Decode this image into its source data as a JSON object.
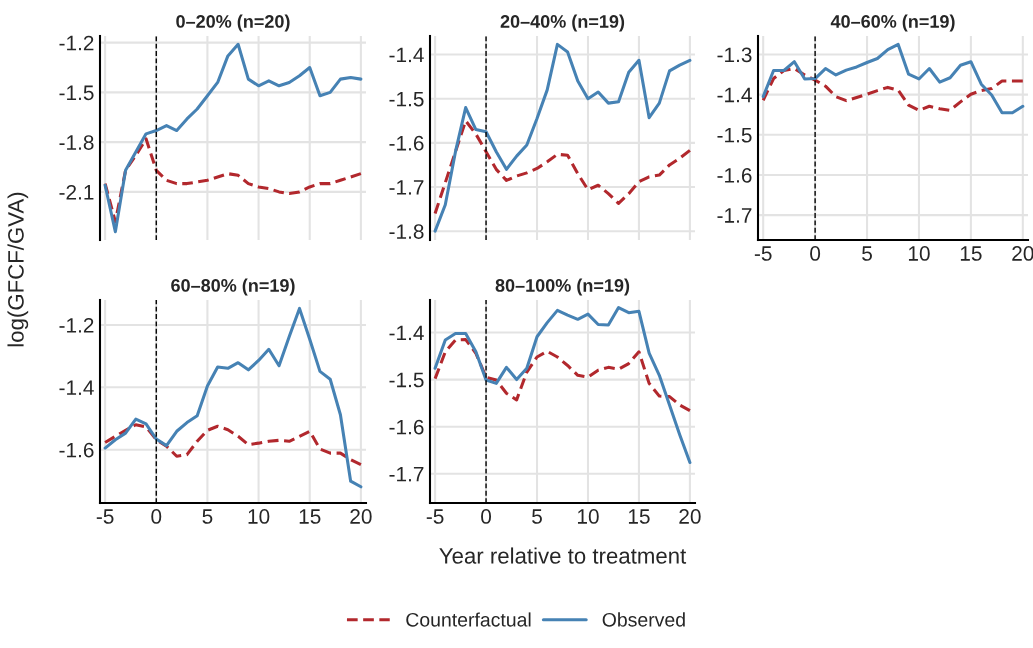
{
  "chart_data": [
    {
      "type": "line",
      "title": "0–20% (n=20)",
      "x": [
        -5,
        -4,
        -3,
        -2,
        -1,
        0,
        1,
        2,
        3,
        4,
        5,
        6,
        7,
        8,
        9,
        10,
        11,
        12,
        13,
        14,
        15,
        16,
        17,
        18,
        19,
        20
      ],
      "xlim": [
        -5.5,
        20.5
      ],
      "xticks": [
        -5,
        0,
        5,
        10,
        15,
        20
      ],
      "ylim": [
        -2.39,
        -1.16
      ],
      "yticks": [
        -2.1,
        -1.8,
        -1.5,
        -1.2
      ],
      "tick_labels": "y",
      "grid": true,
      "legend": "bottom",
      "ref_lines": [
        {
          "axis": "x",
          "value": 0,
          "color": "#000000",
          "line_style": "dashed"
        }
      ],
      "series": [
        {
          "name": "Counterfactual",
          "color": "#b2282d",
          "line_style": "dashed",
          "values": [
            -2.05,
            -2.28,
            -1.97,
            -1.88,
            -1.78,
            -1.97,
            -2.03,
            -2.05,
            -2.05,
            -2.04,
            -2.03,
            -2.01,
            -1.99,
            -2.0,
            -2.05,
            -2.07,
            -2.08,
            -2.1,
            -2.11,
            -2.1,
            -2.07,
            -2.05,
            -2.05,
            -2.03,
            -2.01,
            -1.99
          ]
        },
        {
          "name": "Observed",
          "color": "#4682b4",
          "line_style": "solid",
          "values": [
            -2.06,
            -2.34,
            -1.97,
            -1.86,
            -1.75,
            -1.73,
            -1.7,
            -1.73,
            -1.66,
            -1.6,
            -1.52,
            -1.44,
            -1.28,
            -1.21,
            -1.42,
            -1.46,
            -1.43,
            -1.46,
            -1.44,
            -1.4,
            -1.35,
            -1.52,
            -1.5,
            -1.42,
            -1.41,
            -1.42
          ]
        }
      ]
    },
    {
      "type": "line",
      "title": "20–40% (n=19)",
      "x": [
        -5,
        -4,
        -3,
        -2,
        -1,
        0,
        1,
        2,
        3,
        4,
        5,
        6,
        7,
        8,
        9,
        10,
        11,
        12,
        13,
        14,
        15,
        16,
        17,
        18,
        19,
        20
      ],
      "xlim": [
        -5.5,
        20.5
      ],
      "xticks": [
        -5,
        0,
        5,
        10,
        15,
        20
      ],
      "ylim": [
        -1.82,
        -1.358
      ],
      "yticks": [
        -1.8,
        -1.7,
        -1.6,
        -1.5,
        -1.4
      ],
      "tick_labels": "y",
      "grid": true,
      "legend": "bottom",
      "ref_lines": [
        {
          "axis": "x",
          "value": 0,
          "color": "#000000",
          "line_style": "dashed"
        }
      ],
      "series": [
        {
          "name": "Counterfactual",
          "color": "#b2282d",
          "line_style": "dashed",
          "values": [
            -1.76,
            -1.69,
            -1.62,
            -1.55,
            -1.58,
            -1.62,
            -1.66,
            -1.685,
            -1.675,
            -1.668,
            -1.658,
            -1.643,
            -1.626,
            -1.628,
            -1.67,
            -1.706,
            -1.696,
            -1.715,
            -1.737,
            -1.715,
            -1.688,
            -1.677,
            -1.673,
            -1.65,
            -1.635,
            -1.617
          ]
        },
        {
          "name": "Observed",
          "color": "#4682b4",
          "line_style": "solid",
          "values": [
            -1.8,
            -1.74,
            -1.62,
            -1.52,
            -1.57,
            -1.575,
            -1.62,
            -1.66,
            -1.63,
            -1.605,
            -1.545,
            -1.48,
            -1.377,
            -1.394,
            -1.46,
            -1.5,
            -1.485,
            -1.51,
            -1.507,
            -1.44,
            -1.413,
            -1.543,
            -1.51,
            -1.437,
            -1.424,
            -1.413
          ]
        }
      ]
    },
    {
      "type": "line",
      "title": "40–60% (n=19)",
      "x": [
        -5,
        -4,
        -3,
        -2,
        -1,
        0,
        1,
        2,
        3,
        4,
        5,
        6,
        7,
        8,
        9,
        10,
        11,
        12,
        13,
        14,
        15,
        16,
        17,
        18,
        19,
        20
      ],
      "xlim": [
        -5.5,
        20.5
      ],
      "xticks": [
        -5,
        0,
        5,
        10,
        15,
        20
      ],
      "ylim": [
        -1.762,
        -1.254
      ],
      "yticks": [
        -1.7,
        -1.6,
        -1.5,
        -1.4,
        -1.3
      ],
      "grid": true,
      "legend": "bottom",
      "ref_lines": [
        {
          "axis": "x",
          "value": 0,
          "color": "#000000",
          "line_style": "dashed"
        }
      ],
      "series": [
        {
          "name": "Counterfactual",
          "color": "#b2282d",
          "line_style": "dashed",
          "values": [
            -1.414,
            -1.36,
            -1.34,
            -1.335,
            -1.351,
            -1.364,
            -1.379,
            -1.405,
            -1.415,
            -1.407,
            -1.399,
            -1.39,
            -1.382,
            -1.389,
            -1.426,
            -1.439,
            -1.429,
            -1.435,
            -1.439,
            -1.418,
            -1.399,
            -1.39,
            -1.385,
            -1.366,
            -1.366,
            -1.366
          ]
        },
        {
          "name": "Observed",
          "color": "#4682b4",
          "line_style": "solid",
          "values": [
            -1.405,
            -1.34,
            -1.34,
            -1.318,
            -1.361,
            -1.36,
            -1.335,
            -1.351,
            -1.339,
            -1.331,
            -1.32,
            -1.31,
            -1.288,
            -1.275,
            -1.349,
            -1.361,
            -1.335,
            -1.369,
            -1.358,
            -1.327,
            -1.318,
            -1.374,
            -1.401,
            -1.445,
            -1.445,
            -1.429
          ]
        }
      ]
    },
    {
      "type": "line",
      "title": "60–80% (n=19)",
      "ylabel": "log(GFCF/GVA)",
      "x": [
        -5,
        -4,
        -3,
        -2,
        -1,
        0,
        1,
        2,
        3,
        4,
        5,
        6,
        7,
        8,
        9,
        10,
        11,
        12,
        13,
        14,
        15,
        16,
        17,
        18,
        19,
        20
      ],
      "xlim": [
        -5.5,
        20.5
      ],
      "xticks": [
        -5,
        0,
        5,
        10,
        15,
        20
      ],
      "ylim": [
        -1.771,
        -1.12
      ],
      "yticks": [
        -1.6,
        -1.4,
        -1.2
      ],
      "grid": true,
      "legend": "bottom",
      "ref_lines": [
        {
          "axis": "x",
          "value": 0,
          "color": "#000000",
          "line_style": "dashed"
        }
      ],
      "series": [
        {
          "name": "Counterfactual",
          "color": "#b2282d",
          "line_style": "dashed",
          "values": [
            -1.577,
            -1.557,
            -1.538,
            -1.52,
            -1.527,
            -1.568,
            -1.589,
            -1.621,
            -1.616,
            -1.573,
            -1.538,
            -1.525,
            -1.536,
            -1.557,
            -1.584,
            -1.579,
            -1.573,
            -1.57,
            -1.573,
            -1.557,
            -1.541,
            -1.598,
            -1.611,
            -1.611,
            -1.632,
            -1.648
          ]
        },
        {
          "name": "Observed",
          "color": "#4682b4",
          "line_style": "solid",
          "values": [
            -1.595,
            -1.568,
            -1.547,
            -1.502,
            -1.517,
            -1.566,
            -1.587,
            -1.541,
            -1.513,
            -1.491,
            -1.396,
            -1.335,
            -1.339,
            -1.321,
            -1.344,
            -1.314,
            -1.278,
            -1.331,
            -1.237,
            -1.147,
            -1.246,
            -1.349,
            -1.374,
            -1.488,
            -1.701,
            -1.719
          ]
        }
      ]
    },
    {
      "type": "line",
      "title": "80–100% (n=19)",
      "xlabel": "Year relative to treatment",
      "x": [
        -5,
        -4,
        -3,
        -2,
        -1,
        0,
        1,
        2,
        3,
        4,
        5,
        6,
        7,
        8,
        9,
        10,
        11,
        12,
        13,
        14,
        15,
        16,
        17,
        18,
        19,
        20
      ],
      "xlim": [
        -5.5,
        20.5
      ],
      "xticks": [
        -5,
        0,
        5,
        10,
        15,
        20
      ],
      "ylim": [
        -1.762,
        -1.331
      ],
      "yticks": [
        -1.7,
        -1.6,
        -1.5,
        -1.4
      ],
      "grid": true,
      "legend": "bottom",
      "ref_lines": [
        {
          "axis": "x",
          "value": 0,
          "color": "#000000",
          "line_style": "dashed"
        }
      ],
      "series": [
        {
          "name": "Counterfactual",
          "color": "#b2282d",
          "line_style": "dashed",
          "values": [
            -1.498,
            -1.441,
            -1.416,
            -1.415,
            -1.444,
            -1.495,
            -1.501,
            -1.529,
            -1.543,
            -1.484,
            -1.452,
            -1.44,
            -1.452,
            -1.47,
            -1.491,
            -1.495,
            -1.48,
            -1.474,
            -1.478,
            -1.466,
            -1.441,
            -1.508,
            -1.535,
            -1.536,
            -1.554,
            -1.566
          ]
        },
        {
          "name": "Observed",
          "color": "#4682b4",
          "line_style": "solid",
          "values": [
            -1.476,
            -1.416,
            -1.402,
            -1.402,
            -1.441,
            -1.501,
            -1.508,
            -1.474,
            -1.5,
            -1.476,
            -1.409,
            -1.379,
            -1.353,
            -1.363,
            -1.372,
            -1.361,
            -1.383,
            -1.384,
            -1.347,
            -1.358,
            -1.355,
            -1.444,
            -1.491,
            -1.554,
            -1.617,
            -1.676
          ]
        }
      ]
    }
  ]
}
